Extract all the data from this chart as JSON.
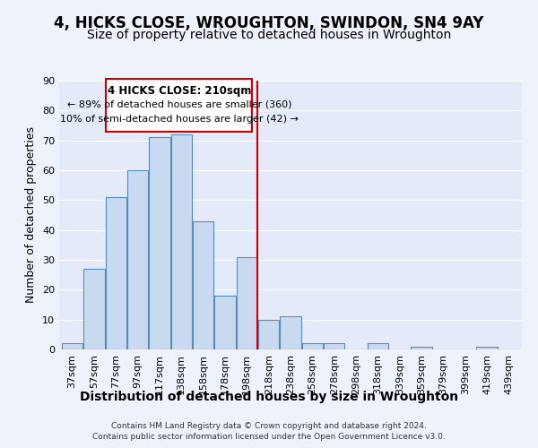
{
  "title": "4, HICKS CLOSE, WROUGHTON, SWINDON, SN4 9AY",
  "subtitle": "Size of property relative to detached houses in Wroughton",
  "xlabel": "Distribution of detached houses by size in Wroughton",
  "ylabel": "Number of detached properties",
  "bar_labels": [
    "37sqm",
    "57sqm",
    "77sqm",
    "97sqm",
    "117sqm",
    "138sqm",
    "158sqm",
    "178sqm",
    "198sqm",
    "218sqm",
    "238sqm",
    "258sqm",
    "278sqm",
    "298sqm",
    "318sqm",
    "339sqm",
    "359sqm",
    "379sqm",
    "399sqm",
    "419sqm",
    "439sqm"
  ],
  "bar_values": [
    2,
    27,
    51,
    60,
    71,
    72,
    43,
    18,
    31,
    10,
    11,
    2,
    2,
    0,
    2,
    0,
    1,
    0,
    0,
    1,
    0
  ],
  "bar_color": "#c9d9f0",
  "bar_edge_color": "#5b8cbe",
  "ylim": [
    0,
    90
  ],
  "yticks": [
    0,
    10,
    20,
    30,
    40,
    50,
    60,
    70,
    80,
    90
  ],
  "vline_x": 8.5,
  "vline_color": "#cc0000",
  "annotation_title": "4 HICKS CLOSE: 210sqm",
  "annotation_line1": "← 89% of detached houses are smaller (360)",
  "annotation_line2": "10% of semi-detached houses are larger (42) →",
  "annotation_box_color": "#cc0000",
  "footer_line1": "Contains HM Land Registry data © Crown copyright and database right 2024.",
  "footer_line2": "Contains public sector information licensed under the Open Government Licence v3.0.",
  "background_color": "#eef2fb",
  "plot_background": "#e4eaf8",
  "grid_color": "#ffffff",
  "title_fontsize": 12,
  "subtitle_fontsize": 10,
  "ylabel_fontsize": 9,
  "xlabel_fontsize": 10,
  "tick_fontsize": 8,
  "footer_fontsize": 6.5
}
